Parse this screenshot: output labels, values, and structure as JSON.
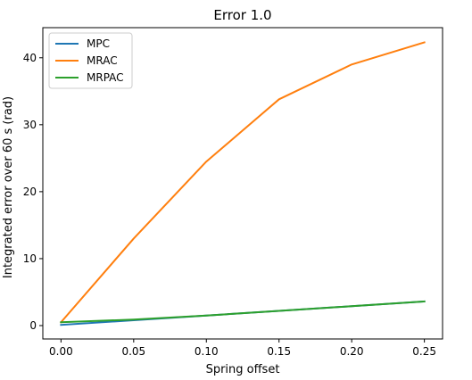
{
  "chart_data": {
    "type": "line",
    "title": "Error 1.0",
    "xlabel": "Spring offset",
    "ylabel": "Integrated error over 60 s (rad)",
    "x": [
      0.0,
      0.05,
      0.1,
      0.15,
      0.2,
      0.25
    ],
    "xlim": [
      -0.0125,
      0.2625
    ],
    "ylim": [
      -2.0,
      44.5
    ],
    "xticks": [
      "0.00",
      "0.05",
      "0.10",
      "0.15",
      "0.20",
      "0.25"
    ],
    "xtick_values": [
      0.0,
      0.05,
      0.1,
      0.15,
      0.2,
      0.25
    ],
    "yticks": [
      "0",
      "10",
      "20",
      "30",
      "40"
    ],
    "ytick_values": [
      0,
      10,
      20,
      30,
      40
    ],
    "grid": false,
    "legend_position": "top-left",
    "series": [
      {
        "name": "MPC",
        "color": "#1f77b4",
        "values": [
          0.1,
          0.8,
          1.5,
          2.2,
          2.9,
          3.6
        ]
      },
      {
        "name": "MRAC",
        "color": "#ff7f0e",
        "values": [
          0.5,
          13.0,
          24.5,
          33.8,
          39.0,
          42.3
        ]
      },
      {
        "name": "MRPAC",
        "color": "#2ca02c",
        "values": [
          0.5,
          0.9,
          1.5,
          2.2,
          2.9,
          3.6
        ]
      }
    ]
  }
}
